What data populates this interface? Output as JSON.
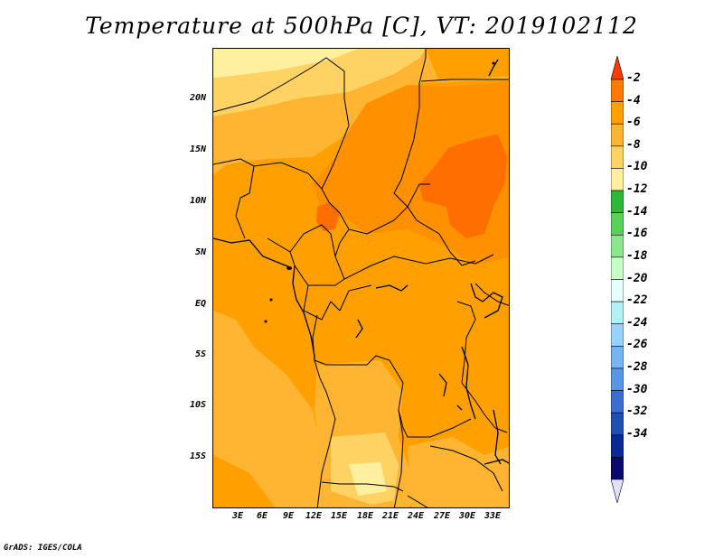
{
  "title": "Temperature at 500hPa [C], VT: 2019102112",
  "credit": "GrADS: IGES/COLA",
  "map": {
    "lon_range": [
      0,
      35
    ],
    "lat_range": [
      -20,
      25
    ],
    "lat_ticks": [
      "20N",
      "15N",
      "10N",
      "5N",
      "EQ",
      "5S",
      "10S",
      "15S"
    ],
    "lon_ticks": [
      "3E",
      "6E",
      "9E",
      "12E",
      "15E",
      "18E",
      "21E",
      "24E",
      "27E",
      "30E",
      "33E"
    ]
  },
  "colorbar": {
    "labels": [
      "-2",
      "-4",
      "-6",
      "-8",
      "-10",
      "-12",
      "-14",
      "-16",
      "-18",
      "-20",
      "-22",
      "-24",
      "-26",
      "-28",
      "-30",
      "-32",
      "-34"
    ],
    "colors": [
      "#ff3c00",
      "#ff7800",
      "#ffa000",
      "#ffb432",
      "#ffd264",
      "#fff0a0",
      "#2cba36",
      "#5ad25a",
      "#8ce68c",
      "#c8ffc8",
      "#e6ffff",
      "#b4f0fa",
      "#96d2fa",
      "#78b4f0",
      "#5a96e6",
      "#3c6ed2",
      "#1e50b4",
      "#0a2896",
      "#0a0a6e",
      "#e1e1ff"
    ]
  }
}
